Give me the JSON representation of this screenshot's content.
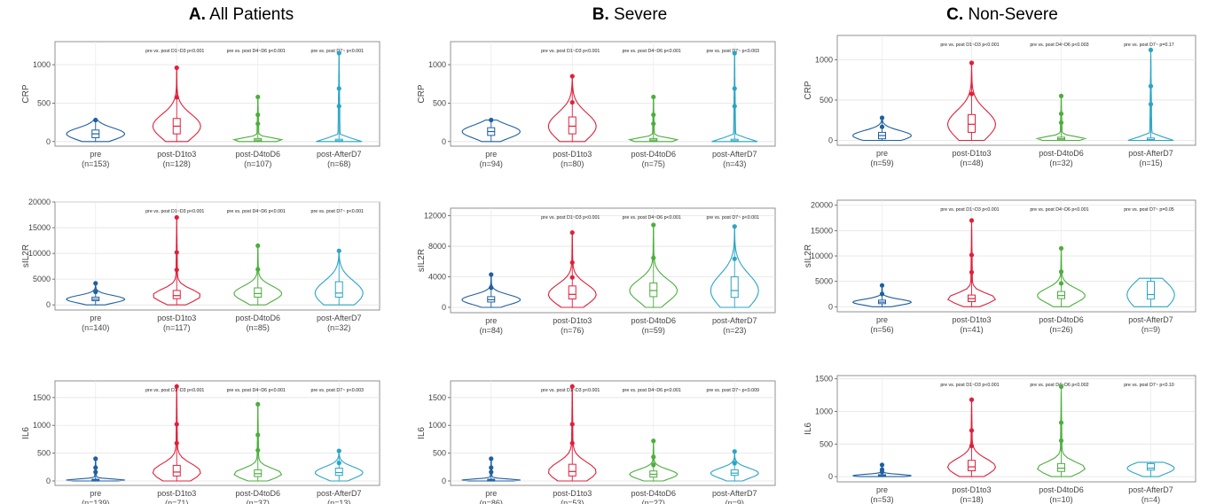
{
  "columns": [
    {
      "letter": "A.",
      "title": "All Patients"
    },
    {
      "letter": "B.",
      "title": "Severe"
    },
    {
      "letter": "C.",
      "title": "Non-Severe"
    }
  ],
  "colors": {
    "pre": "#1f5fa0",
    "post-D1to3": "#e0203a",
    "post-D4toD6": "#4cae3c",
    "post-AfterD7": "#2aa5c4"
  },
  "chart_data": [
    {
      "type": "violin",
      "group": "All Patients",
      "ylabel": "CRP",
      "ylim": [
        -60,
        1300
      ],
      "yticks": [
        0,
        500,
        1000
      ],
      "categories": [
        "pre",
        "post-D1to3",
        "post-D4toD6",
        "post-AfterD7"
      ],
      "n_labels": [
        "(n=153)",
        "(n=128)",
        "(n=107)",
        "(n=68)"
      ],
      "medians": [
        100,
        200,
        20,
        10
      ],
      "q1": [
        50,
        100,
        5,
        3
      ],
      "q3": [
        150,
        300,
        40,
        30
      ],
      "max": [
        280,
        960,
        580,
        1150
      ],
      "annotations": [
        "pre vs. post D1~D3 p<0.001",
        "pre vs. post D4~D6 p<0.001",
        "pre vs. post D7~ p<0.001"
      ]
    },
    {
      "type": "violin",
      "group": "Severe",
      "ylabel": "CRP",
      "ylim": [
        -60,
        1300
      ],
      "yticks": [
        0,
        500,
        1000
      ],
      "categories": [
        "pre",
        "post-D1to3",
        "post-D4toD6",
        "post-AfterD7"
      ],
      "n_labels": [
        "(n=94)",
        "(n=80)",
        "(n=75)",
        "(n=43)"
      ],
      "medians": [
        130,
        200,
        20,
        10
      ],
      "q1": [
        80,
        100,
        5,
        3
      ],
      "q3": [
        180,
        320,
        40,
        30
      ],
      "max": [
        280,
        850,
        580,
        1150
      ],
      "annotations": [
        "pre vs. post D1~D3 p<0.001",
        "pre vs. post D4~D6 p<0.001",
        "pre vs. post D7~ p<0.003"
      ]
    },
    {
      "type": "violin",
      "group": "Non-Severe",
      "ylabel": "CRP",
      "ylim": [
        -60,
        1300
      ],
      "yticks": [
        0,
        500,
        1000
      ],
      "categories": [
        "pre",
        "post-D1to3",
        "post-D4toD6",
        "post-AfterD7"
      ],
      "n_labels": [
        "(n=59)",
        "(n=48)",
        "(n=32)",
        "(n=15)"
      ],
      "medians": [
        60,
        200,
        20,
        10
      ],
      "q1": [
        20,
        100,
        5,
        3
      ],
      "q3": [
        100,
        320,
        40,
        30
      ],
      "max": [
        280,
        960,
        550,
        1120
      ],
      "annotations": [
        "pre vs. post D1~D3 p<0.001",
        "pre vs. post D4~D6 p<0.003",
        "pre vs. post D7~ p=0.17"
      ]
    },
    {
      "type": "violin",
      "group": "All Patients",
      "ylabel": "sIL2R",
      "ylim": [
        -1000,
        20000
      ],
      "yticks": [
        0,
        5000,
        10000,
        15000,
        20000
      ],
      "categories": [
        "pre",
        "post-D1to3",
        "post-D4toD6",
        "post-AfterD7"
      ],
      "n_labels": [
        "(n=140)",
        "(n=117)",
        "(n=85)",
        "(n=32)"
      ],
      "medians": [
        1100,
        1800,
        2200,
        2300
      ],
      "q1": [
        800,
        1200,
        1500,
        1500
      ],
      "q3": [
        1500,
        2800,
        3300,
        4500
      ],
      "max": [
        4200,
        17000,
        11500,
        10500
      ],
      "annotations": [
        "pre vs. post D1~D3 p<0.001",
        "pre vs. post D4~D6 p<0.001",
        "pre vs. post D7~ p<0.001"
      ]
    },
    {
      "type": "violin",
      "group": "Severe",
      "ylabel": "sIL2R",
      "ylim": [
        -700,
        13000
      ],
      "yticks": [
        0,
        4000,
        8000,
        12000
      ],
      "categories": [
        "pre",
        "post-D1to3",
        "post-D4toD6",
        "post-AfterD7"
      ],
      "n_labels": [
        "(n=84)",
        "(n=76)",
        "(n=59)",
        "(n=23)"
      ],
      "medians": [
        1000,
        1700,
        2200,
        2200
      ],
      "q1": [
        700,
        1100,
        1400,
        1300
      ],
      "q3": [
        1400,
        2800,
        3200,
        4000
      ],
      "max": [
        4300,
        9800,
        10800,
        10600
      ],
      "annotations": [
        "pre vs. post D1~D3 p<0.001",
        "pre vs. post D4~D6 p<0.001",
        "pre vs. post D7~ p<0.001"
      ]
    },
    {
      "type": "violin",
      "group": "Non-Severe",
      "ylabel": "sIL2R",
      "ylim": [
        -1000,
        21000
      ],
      "yticks": [
        0,
        5000,
        10000,
        15000,
        20000
      ],
      "categories": [
        "pre",
        "post-D1to3",
        "post-D4toD6",
        "post-AfterD7"
      ],
      "n_labels": [
        "(n=56)",
        "(n=41)",
        "(n=26)",
        "(n=9)"
      ],
      "medians": [
        900,
        1600,
        2200,
        2400
      ],
      "q1": [
        600,
        1000,
        1600,
        1500
      ],
      "q3": [
        1300,
        2300,
        3000,
        5000
      ],
      "max": [
        4200,
        17000,
        11500,
        5600
      ],
      "annotations": [
        "pre vs. post D1~D3 p<0.001",
        "pre vs. post D4~D6 p<0.001",
        "pre vs. post D7~ p=0.05"
      ]
    },
    {
      "type": "violin",
      "group": "All Patients",
      "ylabel": "IL6",
      "ylim": [
        -80,
        1800
      ],
      "yticks": [
        0,
        500,
        1000,
        1500
      ],
      "categories": [
        "pre",
        "post-D1to3",
        "post-D4toD6",
        "post-AfterD7"
      ],
      "n_labels": [
        "(n=139)",
        "(n=71)",
        "(n=37)",
        "(n=13)"
      ],
      "medians": [
        15,
        160,
        130,
        150
      ],
      "q1": [
        5,
        90,
        80,
        100
      ],
      "q3": [
        30,
        280,
        200,
        230
      ],
      "max": [
        400,
        1700,
        1380,
        540
      ],
      "annotations": [
        "pre vs. post D1~D3 p<0.001",
        "pre vs. post D4~D6 p<0.001",
        "pre vs. post D7~ p<0.003"
      ]
    },
    {
      "type": "violin",
      "group": "Severe",
      "ylabel": "IL6",
      "ylim": [
        -80,
        1800
      ],
      "yticks": [
        0,
        500,
        1000,
        1500
      ],
      "categories": [
        "pre",
        "post-D1to3",
        "post-D4toD6",
        "post-AfterD7"
      ],
      "n_labels": [
        "(n=86)",
        "(n=53)",
        "(n=27)",
        "(n=9)"
      ],
      "medians": [
        15,
        170,
        120,
        140
      ],
      "q1": [
        5,
        90,
        70,
        100
      ],
      "q3": [
        30,
        300,
        180,
        200
      ],
      "max": [
        400,
        1700,
        720,
        530
      ],
      "annotations": [
        "pre vs. post D1~D3 p<0.001",
        "pre vs. post D4~D6 p<0.001",
        "pre vs. post D7~ p<0.009"
      ]
    },
    {
      "type": "violin",
      "group": "Non-Severe",
      "ylabel": "IL6",
      "ylim": [
        -80,
        1550
      ],
      "yticks": [
        0,
        500,
        1000,
        1500
      ],
      "categories": [
        "pre",
        "post-D1to3",
        "post-D4toD6",
        "post-AfterD7"
      ],
      "n_labels": [
        "(n=53)",
        "(n=18)",
        "(n=10)",
        "(n=4)"
      ],
      "medians": [
        15,
        150,
        130,
        130
      ],
      "q1": [
        5,
        90,
        80,
        100
      ],
      "q3": [
        30,
        250,
        200,
        200
      ],
      "max": [
        180,
        1180,
        1380,
        220
      ],
      "annotations": [
        "pre vs. post D1~D3 p<0.001",
        "pre vs. post D4~D6 p<0.002",
        "pre vs. post D7~ p<0.10"
      ]
    }
  ]
}
